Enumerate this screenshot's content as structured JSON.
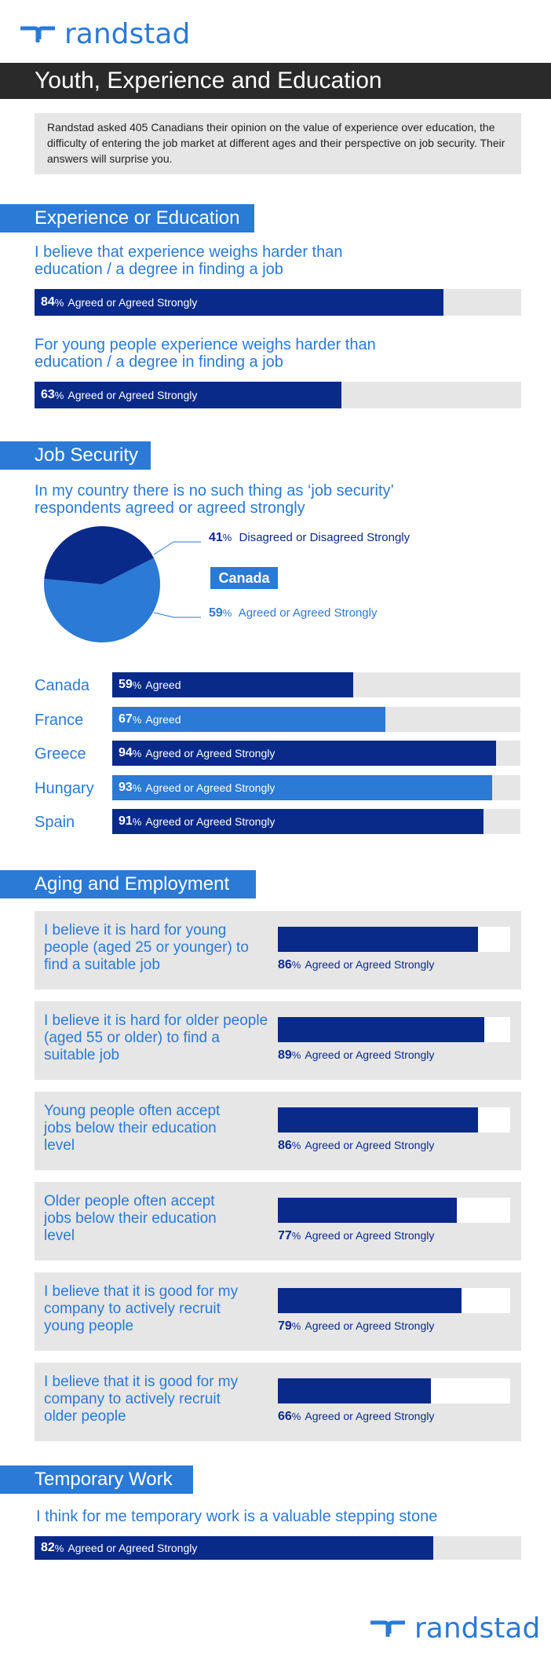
{
  "brand": {
    "name": "randstad"
  },
  "header": {
    "title": "Youth, Experience and Education",
    "intro": "Randstad asked 405 Canadians their opinion on the value of experience over education, the difficulty of entering the job market at different ages and their perspective on job security. Their answers will surprise you."
  },
  "colors": {
    "dark_blue": "#0a2a8a",
    "light_blue": "#2a7ad6",
    "gray": "#e6e6e6",
    "title_bg": "#2a2a2a"
  },
  "experience": {
    "title": "Experience or Education",
    "q1": "I believe that experience weighs harder than education / a degree in finding a job",
    "q1_value": "84",
    "q1_label": "Agreed or Agreed Strongly",
    "q2": "For young people experience weighs harder than education / a degree in finding a job",
    "q2_value": "63",
    "q2_label": "Agreed or Agreed Strongly"
  },
  "job_security": {
    "title": "Job Security",
    "question": "In my country there is no such thing as ‘job security’ respondents agreed or agreed strongly",
    "badge": "Canada",
    "pie_disagree_value": "41",
    "pie_disagree_label": "Disagreed or Disagreed Strongly",
    "pie_agree_value": "59",
    "pie_agree_label": "Agreed or Agreed Strongly",
    "countries": [
      {
        "name": "Canada",
        "value": "59",
        "label": "Agreed"
      },
      {
        "name": "France",
        "value": "67",
        "label": "Agreed"
      },
      {
        "name": "Greece",
        "value": "94",
        "label": "Agreed or Agreed Strongly"
      },
      {
        "name": "Hungary",
        "value": "93",
        "label": "Agreed or Agreed Strongly"
      },
      {
        "name": "Spain",
        "value": "91",
        "label": "Agreed or Agreed Strongly"
      }
    ]
  },
  "aging": {
    "title": "Aging and Employment",
    "items": [
      {
        "question": "I believe it is hard for young people (aged 25 or younger) to find a suitable job",
        "value": "86",
        "label": "Agreed or Agreed Strongly"
      },
      {
        "question": "I believe it is hard for older people (aged 55 or older) to find a suitable job",
        "value": "89",
        "label": "Agreed or Agreed Strongly"
      },
      {
        "question": "Young people often accept jobs below their education level",
        "value": "86",
        "label": "Agreed or Agreed Strongly"
      },
      {
        "question": "Older people often accept jobs below their education level",
        "value": "77",
        "label": "Agreed or Agreed Strongly"
      },
      {
        "question": "I believe that it is good for my company to actively recruit young people",
        "value": "79",
        "label": "Agreed or Agreed Strongly"
      },
      {
        "question": "I believe that it is good for my company to actively recruit older people",
        "value": "66",
        "label": "Agreed or Agreed Strongly"
      }
    ]
  },
  "temporary": {
    "title": "Temporary Work",
    "question": "I think for me temporary work is a valuable stepping stone",
    "value": "82",
    "label": "Agreed or Agreed Strongly"
  },
  "chart_data": [
    {
      "type": "bar",
      "categories": [
        "I believe that experience weighs harder than education / a degree in finding a job",
        "For young people experience weighs harder than education / a degree in finding a job"
      ],
      "values": [
        84,
        63
      ],
      "ylim": [
        0,
        100
      ]
    },
    {
      "type": "pie",
      "categories": [
        "Disagreed or Disagreed Strongly",
        "Agreed or Agreed Strongly"
      ],
      "values": [
        41,
        59
      ],
      "title": "Canada"
    },
    {
      "type": "bar",
      "categories": [
        "Canada",
        "France",
        "Greece",
        "Hungary",
        "Spain"
      ],
      "values": [
        59,
        67,
        94,
        93,
        91
      ],
      "ylim": [
        0,
        100
      ]
    },
    {
      "type": "bar",
      "categories": [
        "young people hard to find job",
        "older people hard to find job",
        "young accept jobs below education",
        "older accept jobs below education",
        "recruit young people",
        "recruit older people"
      ],
      "values": [
        86,
        89,
        86,
        77,
        79,
        66
      ],
      "ylim": [
        0,
        100
      ]
    },
    {
      "type": "bar",
      "categories": [
        "I think for me temporary work is a valuable stepping stone"
      ],
      "values": [
        82
      ],
      "ylim": [
        0,
        100
      ]
    }
  ]
}
